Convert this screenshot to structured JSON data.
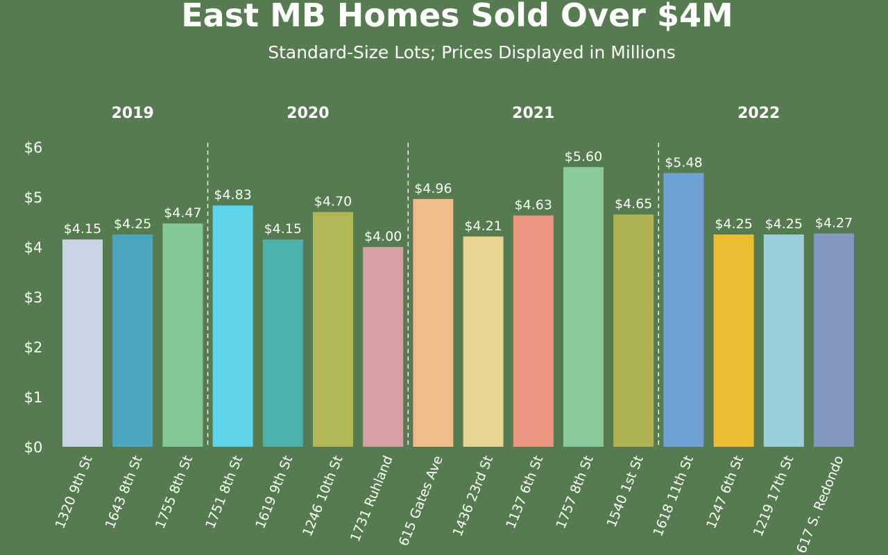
{
  "chart_data": {
    "type": "bar",
    "title": "East MB Homes Sold Over $4M",
    "subtitle": "Standard-Size Lots; Prices Displayed in Millions",
    "ylim": [
      0,
      6
    ],
    "y_ticks": [
      0,
      1,
      2,
      3,
      4,
      5,
      6
    ],
    "y_tick_labels": [
      "$0",
      "$1",
      "$2",
      "$3",
      "$4",
      "$5",
      "$6"
    ],
    "grid": false,
    "groups": [
      {
        "label": "2019",
        "categories": [
          "1320 9th St",
          "1643 8th St",
          "1755 8th St"
        ]
      },
      {
        "label": "2020",
        "categories": [
          "1751 8th St",
          "1619 9th St",
          "1246 10th St",
          "1731 Ruhland"
        ]
      },
      {
        "label": "2021",
        "categories": [
          "615 Gates Ave",
          "1436 23rd St",
          "1137 6th St",
          "1757 8th St",
          "1540 1st St"
        ]
      },
      {
        "label": "2022",
        "categories": [
          "1618 11th St",
          "1247 6th St",
          "1219 17th St",
          "617 S. Redondo"
        ]
      }
    ],
    "categories": [
      "1320 9th St",
      "1643 8th St",
      "1755 8th St",
      "1751 8th St",
      "1619 9th St",
      "1246 10th St",
      "1731 Ruhland",
      "615 Gates Ave",
      "1436 23rd St",
      "1137 6th St",
      "1757 8th St",
      "1540 1st St",
      "1618 11th St",
      "1247 6th St",
      "1219 17th St",
      "617 S. Redondo"
    ],
    "values": [
      4.15,
      4.25,
      4.47,
      4.83,
      4.15,
      4.7,
      4.0,
      4.96,
      4.21,
      4.63,
      5.6,
      4.65,
      5.48,
      4.25,
      4.25,
      4.27
    ],
    "value_labels": [
      "$4.15",
      "$4.25",
      "$4.47",
      "$4.83",
      "$4.15",
      "$4.70",
      "$4.00",
      "$4.96",
      "$4.21",
      "$4.63",
      "$5.60",
      "$4.65",
      "$5.48",
      "$4.25",
      "$4.25",
      "$4.27"
    ],
    "colors": [
      "#c8d3e3",
      "#4aa7bf",
      "#86c79a",
      "#5ed4ea",
      "#4cb1ac",
      "#b2b654",
      "#d6a0a4",
      "#efbc8a",
      "#e6d58e",
      "#ec9683",
      "#8ac99b",
      "#b0b352",
      "#6fa1d8",
      "#ecbd33",
      "#9bd0db",
      "#8497bf"
    ],
    "background": "#577b50"
  }
}
